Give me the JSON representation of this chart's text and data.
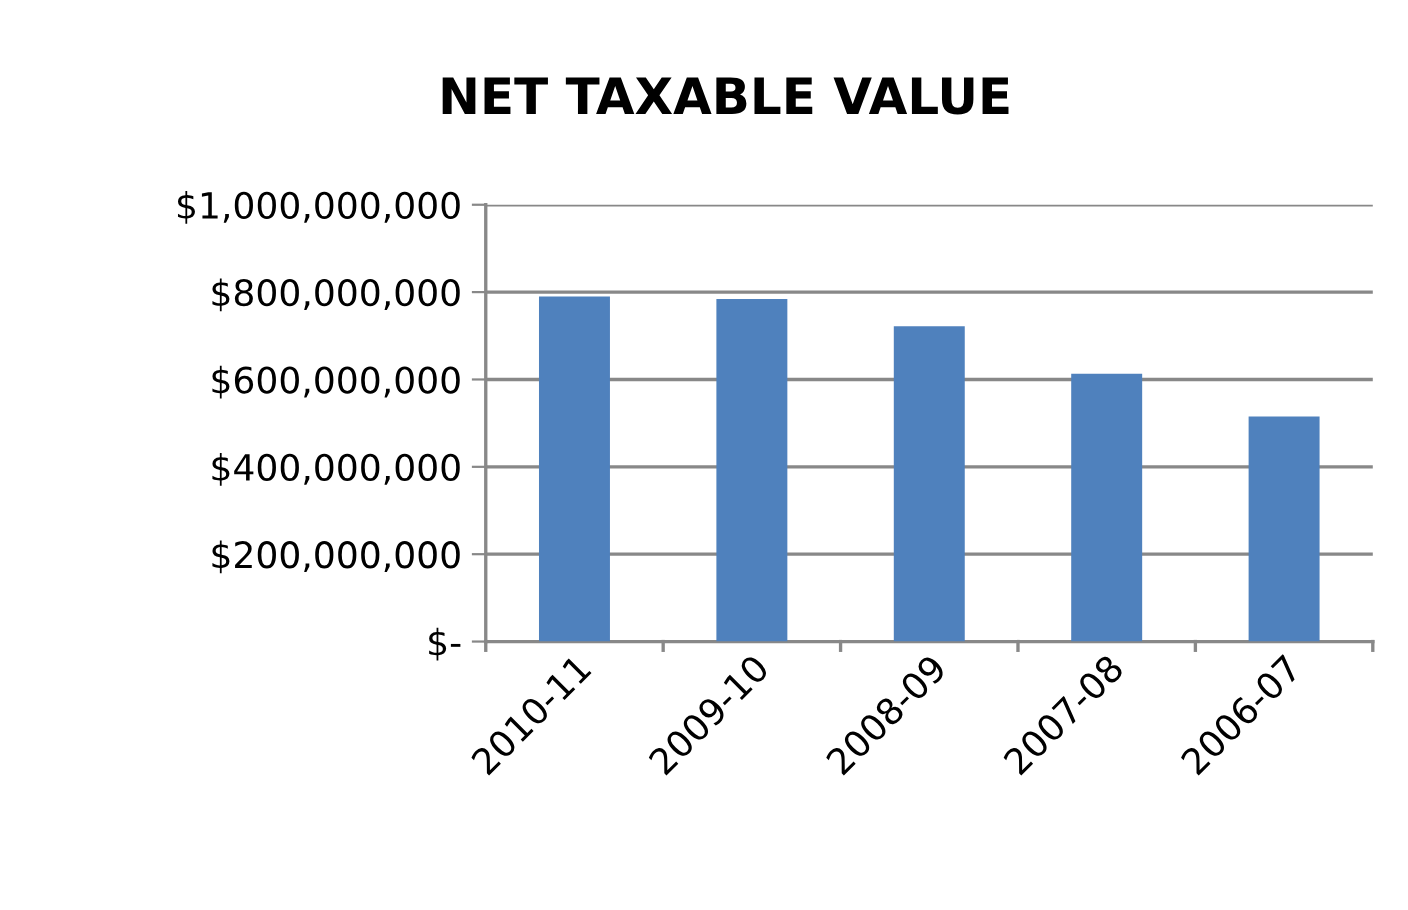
{
  "chart_data": {
    "type": "bar",
    "title": "NET TAXABLE VALUE",
    "categories": [
      "2010-11",
      "2009-10",
      "2008-09",
      "2007-08",
      "2006-07"
    ],
    "values": [
      790000000,
      784000000,
      722000000,
      613000000,
      515000000
    ],
    "color": "#4f81bd",
    "ylim": [
      0,
      1000000000
    ],
    "yticks": [
      {
        "value": 0,
        "label": "$-"
      },
      {
        "value": 200000000,
        "label": "$200,000,000"
      },
      {
        "value": 400000000,
        "label": "$400,000,000"
      },
      {
        "value": 600000000,
        "label": "$600,000,000"
      },
      {
        "value": 800000000,
        "label": "$800,000,000"
      },
      {
        "value": 1000000000,
        "label": "$1,000,000,000"
      }
    ],
    "grid": "y",
    "legend": false
  }
}
